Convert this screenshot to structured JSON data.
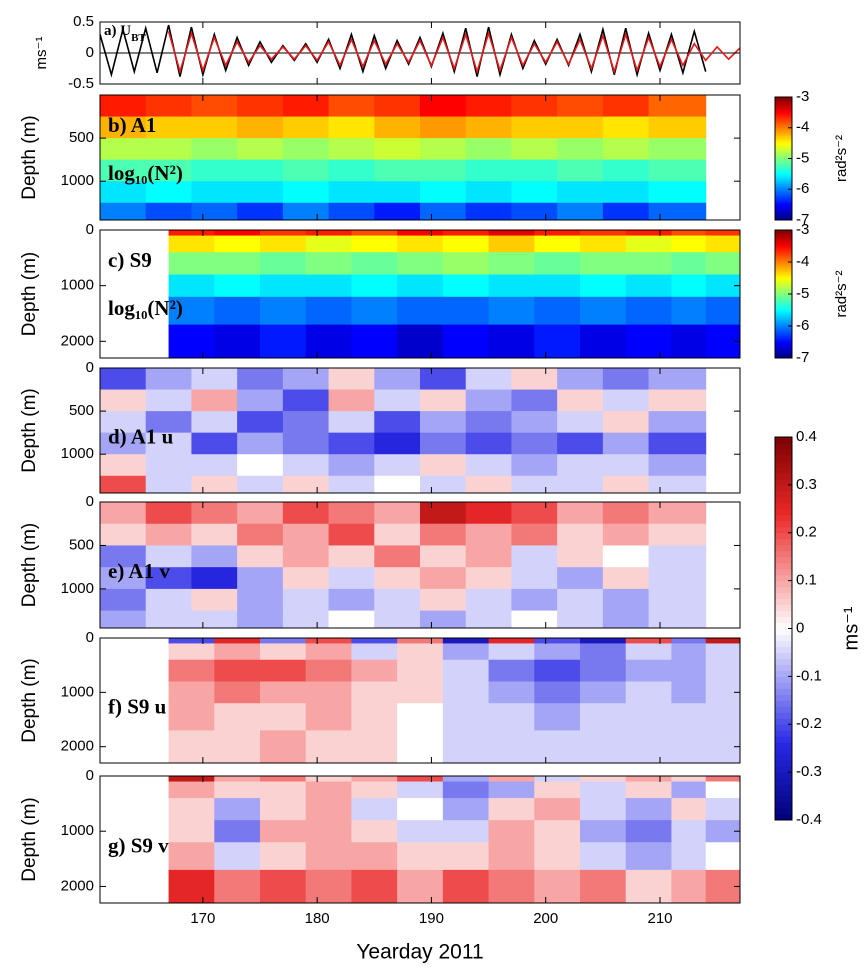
{
  "chart_data": [
    {
      "type": "line",
      "title": "a) U",
      "title_subscript": "BT",
      "ylabel": "ms⁻¹",
      "xlim": [
        161,
        217
      ],
      "xticks": [
        170,
        180,
        190,
        200,
        210
      ],
      "ylim": [
        -0.5,
        0.5
      ],
      "yticks": [
        -0.5,
        0,
        0.5
      ],
      "x": [
        161,
        162,
        163,
        164,
        165,
        166,
        167,
        168,
        169,
        170,
        171,
        172,
        173,
        174,
        175,
        176,
        177,
        178,
        179,
        180,
        181,
        182,
        183,
        184,
        185,
        186,
        187,
        188,
        189,
        190,
        191,
        192,
        193,
        194,
        195,
        196,
        197,
        198,
        199,
        200,
        201,
        202,
        203,
        204,
        205,
        206,
        207,
        208,
        209,
        210,
        211,
        212,
        213,
        214,
        215,
        216,
        217
      ],
      "series": [
        {
          "color": "#000000",
          "values": [
            0.3,
            -0.35,
            0.38,
            -0.3,
            0.4,
            -0.32,
            0.45,
            -0.38,
            0.42,
            -0.35,
            0.3,
            -0.28,
            0.25,
            -0.2,
            0.18,
            -0.15,
            0.12,
            -0.12,
            0.15,
            -0.15,
            0.22,
            -0.25,
            0.3,
            -0.3,
            0.28,
            -0.25,
            0.2,
            -0.18,
            0.25,
            -0.22,
            0.32,
            -0.3,
            0.4,
            -0.38,
            0.42,
            -0.35,
            0.3,
            -0.25,
            0.2,
            -0.18,
            0.22,
            -0.2,
            0.3,
            -0.3,
            0.38,
            -0.35,
            0.4,
            -0.35,
            0.32,
            -0.28,
            0.3,
            -0.32,
            0.35,
            -0.3,
            null,
            null,
            null
          ]
        },
        {
          "color": "#e8191b",
          "values": [
            null,
            null,
            null,
            null,
            null,
            null,
            0.35,
            -0.3,
            0.32,
            -0.28,
            0.25,
            -0.2,
            0.18,
            -0.15,
            0.12,
            -0.1,
            0.1,
            -0.1,
            0.12,
            -0.12,
            0.18,
            -0.2,
            0.22,
            -0.22,
            0.2,
            -0.18,
            0.15,
            -0.15,
            0.2,
            -0.2,
            0.25,
            -0.25,
            0.3,
            -0.3,
            0.32,
            -0.28,
            0.25,
            -0.2,
            0.15,
            -0.15,
            0.18,
            -0.18,
            0.22,
            -0.25,
            0.28,
            -0.3,
            0.3,
            -0.28,
            0.25,
            -0.22,
            0.22,
            -0.2,
            0.15,
            -0.12,
            0.1,
            -0.1,
            0.08
          ]
        }
      ]
    },
    {
      "type": "heatmap",
      "labels": [
        "b) A1",
        "log₁₀(N²)"
      ],
      "ylabel": "Depth (m)",
      "colormap": "jet",
      "xlim": [
        161,
        217
      ],
      "xticks": [
        170,
        180,
        190,
        200,
        210
      ],
      "ylim": [
        1450,
        0
      ],
      "yticks": [
        500,
        1000
      ],
      "x_edges": [
        161,
        165,
        169,
        173,
        177,
        181,
        185,
        189,
        193,
        197,
        201,
        205,
        209,
        214
      ],
      "y_edges": [
        0,
        250,
        500,
        750,
        1000,
        1250,
        1450
      ],
      "values": [
        [
          -3.6,
          -3.7,
          -3.8,
          -3.7,
          -3.6,
          -3.8,
          -3.7,
          -3.5,
          -3.6,
          -3.7,
          -3.8,
          -3.7,
          -3.9
        ],
        [
          -4.2,
          -4.3,
          -4.3,
          -4.2,
          -4.3,
          -4.4,
          -4.2,
          -4.1,
          -4.2,
          -4.3,
          -4.3,
          -4.4,
          -4.3
        ],
        [
          -4.8,
          -4.8,
          -4.9,
          -4.8,
          -4.9,
          -4.8,
          -4.7,
          -4.8,
          -4.9,
          -4.8,
          -4.9,
          -4.8,
          -4.9
        ],
        [
          -5.2,
          -5.2,
          -5.3,
          -5.3,
          -5.2,
          -5.3,
          -5.2,
          -5.2,
          -5.3,
          -5.3,
          -5.2,
          -5.3,
          -5.2
        ],
        [
          -5.6,
          -5.5,
          -5.6,
          -5.6,
          -5.5,
          -5.6,
          -5.6,
          -5.5,
          -5.6,
          -5.5,
          -5.6,
          -5.6,
          -5.5
        ],
        [
          -6.0,
          -6.2,
          -6.1,
          -6.3,
          -6.0,
          -6.2,
          -6.4,
          -6.1,
          -6.3,
          -6.2,
          -6.0,
          -6.3,
          -6.1
        ]
      ],
      "colorbar": {
        "clim": [
          -7,
          -3
        ],
        "ticks": [
          -3,
          -4,
          -5,
          -6,
          -7
        ],
        "label": "rad²s⁻²"
      }
    },
    {
      "type": "heatmap",
      "labels": [
        "c) S9",
        "log₁₀(N²)"
      ],
      "ylabel": "Depth (m)",
      "colormap": "jet",
      "xlim": [
        161,
        217
      ],
      "xticks": [
        170,
        180,
        190,
        200,
        210
      ],
      "ylim": [
        2300,
        0
      ],
      "yticks": [
        0,
        1000,
        2000
      ],
      "x_edges": [
        167,
        171,
        175,
        179,
        183,
        187,
        191,
        195,
        199,
        203,
        207,
        211,
        214,
        217
      ],
      "y_edges": [
        0,
        100,
        400,
        800,
        1200,
        1700,
        2300
      ],
      "values": [
        [
          -3.6,
          -3.5,
          -3.7,
          -3.6,
          -3.8,
          -3.5,
          -3.6,
          -3.4,
          -3.6,
          -3.7,
          -3.6,
          -3.8,
          -3.7
        ],
        [
          -4.4,
          -4.5,
          -4.4,
          -4.6,
          -4.5,
          -4.4,
          -4.5,
          -4.3,
          -4.5,
          -4.4,
          -4.6,
          -4.5,
          -4.4
        ],
        [
          -5.0,
          -5.0,
          -5.1,
          -5.0,
          -5.1,
          -5.0,
          -4.9,
          -5.0,
          -5.1,
          -5.0,
          -5.0,
          -5.1,
          -5.0
        ],
        [
          -5.6,
          -5.5,
          -5.6,
          -5.6,
          -5.5,
          -5.6,
          -5.5,
          -5.6,
          -5.6,
          -5.5,
          -5.6,
          -5.5,
          -5.6
        ],
        [
          -6.0,
          -6.1,
          -6.0,
          -6.1,
          -6.0,
          -6.1,
          -6.1,
          -6.0,
          -6.1,
          -6.0,
          -6.1,
          -6.0,
          -6.1
        ],
        [
          -6.5,
          -6.6,
          -6.4,
          -6.6,
          -6.5,
          -6.7,
          -6.5,
          -6.6,
          -6.4,
          -6.6,
          -6.5,
          -6.6,
          -6.5
        ]
      ],
      "colorbar": {
        "clim": [
          -7,
          -3
        ],
        "ticks": [
          -3,
          -4,
          -5,
          -6,
          -7
        ],
        "label": "rad²s⁻²"
      }
    },
    {
      "type": "heatmap",
      "labels": [
        "d) A1 u"
      ],
      "ylabel": "Depth (m)",
      "colormap": "RdBu",
      "xlim": [
        161,
        217
      ],
      "xticks": [
        170,
        180,
        190,
        200,
        210
      ],
      "ylim": [
        1450,
        0
      ],
      "yticks": [
        0,
        500,
        1000
      ],
      "x_edges": [
        161,
        165,
        169,
        173,
        177,
        181,
        185,
        189,
        193,
        197,
        201,
        205,
        209,
        214
      ],
      "y_edges": [
        0,
        250,
        500,
        750,
        1000,
        1250,
        1450
      ],
      "values": [
        [
          -0.2,
          -0.1,
          -0.05,
          -0.15,
          -0.1,
          0.05,
          -0.1,
          -0.2,
          -0.05,
          0.05,
          -0.1,
          -0.15,
          -0.1
        ],
        [
          0.05,
          -0.05,
          0.1,
          -0.1,
          -0.2,
          0.1,
          -0.05,
          0.05,
          -0.1,
          -0.15,
          0.05,
          -0.05,
          0.05
        ],
        [
          -0.05,
          -0.15,
          -0.05,
          -0.2,
          -0.15,
          -0.05,
          -0.2,
          -0.1,
          -0.15,
          -0.1,
          -0.05,
          0.05,
          -0.1
        ],
        [
          -0.1,
          -0.05,
          -0.2,
          -0.1,
          -0.15,
          -0.2,
          -0.25,
          -0.15,
          -0.2,
          -0.15,
          -0.2,
          -0.1,
          -0.2
        ],
        [
          0.05,
          -0.05,
          -0.05,
          0.0,
          -0.05,
          -0.1,
          -0.05,
          0.05,
          -0.05,
          -0.1,
          -0.05,
          -0.05,
          -0.1
        ],
        [
          0.2,
          -0.05,
          0.05,
          -0.05,
          0.05,
          -0.05,
          0.0,
          -0.05,
          0.05,
          -0.05,
          -0.05,
          0.05,
          -0.05
        ]
      ],
      "colorbar": {
        "clim": [
          -0.4,
          0.4
        ],
        "ticks": [
          0.4,
          0.3,
          0.2,
          0.1,
          0,
          -0.1,
          -0.2,
          -0.3,
          -0.4
        ],
        "label": "ms⁻¹"
      }
    },
    {
      "type": "heatmap",
      "labels": [
        "e) A1 v"
      ],
      "ylabel": "Depth (m)",
      "colormap": "RdBu",
      "xlim": [
        161,
        217
      ],
      "xticks": [
        170,
        180,
        190,
        200,
        210
      ],
      "ylim": [
        1450,
        0
      ],
      "yticks": [
        0,
        500,
        1000
      ],
      "x_edges": [
        161,
        165,
        169,
        173,
        177,
        181,
        185,
        189,
        193,
        197,
        201,
        205,
        209,
        214
      ],
      "y_edges": [
        0,
        250,
        500,
        750,
        1000,
        1250,
        1450
      ],
      "values": [
        [
          0.1,
          0.2,
          0.15,
          0.1,
          0.2,
          0.15,
          0.1,
          0.3,
          0.25,
          0.2,
          0.1,
          0.15,
          0.1
        ],
        [
          0.05,
          0.1,
          0.05,
          0.15,
          0.1,
          0.2,
          0.05,
          0.15,
          0.1,
          0.15,
          0.05,
          0.1,
          0.05
        ],
        [
          -0.15,
          -0.05,
          -0.1,
          0.05,
          0.1,
          0.05,
          0.15,
          0.05,
          0.1,
          -0.05,
          0.05,
          0.0,
          -0.05
        ],
        [
          -0.1,
          -0.2,
          -0.25,
          -0.1,
          0.05,
          -0.05,
          0.05,
          0.1,
          0.05,
          -0.05,
          -0.1,
          0.05,
          -0.05
        ],
        [
          -0.15,
          -0.05,
          0.05,
          -0.1,
          -0.05,
          -0.1,
          -0.05,
          0.05,
          -0.05,
          -0.1,
          -0.05,
          -0.1,
          -0.05
        ],
        [
          -0.1,
          -0.05,
          -0.05,
          -0.1,
          -0.05,
          0.0,
          -0.05,
          -0.1,
          -0.05,
          0.0,
          -0.05,
          -0.1,
          -0.05
        ]
      ]
    },
    {
      "type": "heatmap",
      "labels": [
        "f) S9 u"
      ],
      "ylabel": "Depth (m)",
      "colormap": "RdBu",
      "xlim": [
        161,
        217
      ],
      "xticks": [
        170,
        180,
        190,
        200,
        210
      ],
      "ylim": [
        2300,
        0
      ],
      "yticks": [
        0,
        1000,
        2000
      ],
      "x_edges": [
        167,
        171,
        175,
        179,
        183,
        187,
        191,
        195,
        199,
        203,
        207,
        211,
        214,
        217
      ],
      "y_edges": [
        0,
        100,
        400,
        800,
        1200,
        1700,
        2300
      ],
      "values": [
        [
          -0.2,
          0.25,
          -0.15,
          0.2,
          -0.2,
          0.15,
          -0.3,
          0.25,
          -0.2,
          -0.3,
          0.2,
          -0.15,
          0.3
        ],
        [
          0.05,
          0.1,
          0.05,
          0.1,
          -0.05,
          0.05,
          -0.1,
          -0.05,
          -0.1,
          -0.15,
          -0.05,
          -0.1,
          -0.05
        ],
        [
          0.15,
          0.2,
          0.2,
          0.15,
          0.1,
          0.05,
          -0.05,
          -0.15,
          -0.2,
          -0.15,
          -0.1,
          -0.1,
          -0.05
        ],
        [
          0.1,
          0.15,
          0.1,
          0.1,
          0.05,
          0.05,
          -0.05,
          -0.1,
          -0.15,
          -0.1,
          -0.05,
          -0.1,
          -0.05
        ],
        [
          0.1,
          0.05,
          0.05,
          0.1,
          0.05,
          0.0,
          -0.05,
          -0.05,
          -0.1,
          -0.05,
          -0.05,
          -0.05,
          -0.05
        ],
        [
          0.05,
          0.05,
          0.1,
          0.05,
          0.05,
          0.0,
          -0.05,
          -0.05,
          -0.05,
          -0.05,
          -0.05,
          -0.05,
          -0.05
        ]
      ]
    },
    {
      "type": "heatmap",
      "labels": [
        "g) S9 v"
      ],
      "ylabel": "Depth (m)",
      "colormap": "RdBu",
      "xlabel": "Yearday 2011",
      "xlim": [
        161,
        217
      ],
      "xticks": [
        170,
        180,
        190,
        200,
        210
      ],
      "ylim": [
        2300,
        0
      ],
      "yticks": [
        0,
        1000,
        2000
      ],
      "x_edges": [
        167,
        171,
        175,
        179,
        183,
        187,
        191,
        195,
        199,
        203,
        207,
        211,
        214,
        217
      ],
      "y_edges": [
        0,
        100,
        400,
        800,
        1200,
        1700,
        2300
      ],
      "values": [
        [
          0.3,
          0.1,
          0.15,
          0.05,
          0.1,
          0.2,
          -0.1,
          0.1,
          -0.05,
          0.05,
          0.1,
          0.05,
          0.15
        ],
        [
          0.1,
          0.05,
          0.05,
          0.1,
          0.05,
          -0.05,
          -0.15,
          -0.1,
          0.05,
          -0.05,
          0.05,
          -0.1,
          0.0
        ],
        [
          0.05,
          -0.1,
          0.05,
          0.1,
          -0.05,
          0.0,
          -0.1,
          0.05,
          0.1,
          -0.05,
          -0.1,
          0.05,
          -0.05
        ],
        [
          0.05,
          -0.15,
          0.1,
          0.1,
          0.05,
          -0.05,
          -0.05,
          0.1,
          0.05,
          -0.1,
          -0.15,
          -0.05,
          -0.1
        ],
        [
          0.1,
          -0.05,
          0.05,
          0.1,
          0.1,
          0.05,
          0.05,
          0.1,
          0.05,
          -0.05,
          -0.1,
          -0.05,
          0.0
        ],
        [
          0.25,
          0.15,
          0.2,
          0.15,
          0.2,
          0.1,
          0.2,
          0.15,
          0.1,
          0.15,
          0.05,
          0.1,
          0.15
        ]
      ]
    }
  ]
}
